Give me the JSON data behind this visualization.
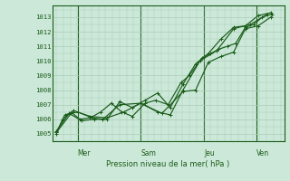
{
  "title": "Pression niveau de la mer( hPa )",
  "ylabel_values": [
    1005,
    1006,
    1007,
    1008,
    1009,
    1010,
    1011,
    1012,
    1013
  ],
  "ylim": [
    1004.5,
    1013.8
  ],
  "xlim": [
    -0.1,
    5.4
  ],
  "background_color": "#cce8d8",
  "grid_color": "#aaccb8",
  "line_color": "#1a5c1a",
  "xtick_labels": [
    "Mer",
    "Sam",
    "Jeu",
    "Ven"
  ],
  "xtick_positions": [
    0.5,
    2.0,
    3.5,
    4.75
  ],
  "vline_positions": [
    0.5,
    2.0,
    3.5,
    4.75
  ],
  "series": [
    {
      "x": [
        0.0,
        0.15,
        0.35,
        0.55,
        0.8,
        1.05,
        1.3,
        1.55,
        1.8,
        2.1,
        2.35,
        2.65,
        2.95,
        3.15,
        3.45,
        3.65,
        3.85,
        4.05,
        4.25,
        4.48,
        4.68,
        4.88,
        5.1
      ],
      "y": [
        1005.0,
        1006.0,
        1006.5,
        1006.0,
        1006.1,
        1006.5,
        1007.1,
        1006.5,
        1006.2,
        1007.1,
        1007.3,
        1007.0,
        1008.5,
        1009.0,
        1010.2,
        1010.5,
        1010.8,
        1011.0,
        1011.2,
        1012.3,
        1012.5,
        1013.0,
        1013.2
      ]
    },
    {
      "x": [
        0.0,
        0.2,
        0.5,
        0.85,
        1.1,
        1.5,
        2.0,
        2.5,
        3.0,
        3.3,
        3.6,
        3.9,
        4.2,
        4.48,
        4.78,
        5.08
      ],
      "y": [
        1005.1,
        1006.3,
        1006.5,
        1006.1,
        1006.0,
        1007.0,
        1007.1,
        1006.4,
        1007.9,
        1008.0,
        1009.9,
        1010.3,
        1010.6,
        1012.2,
        1012.4,
        1013.0
      ]
    },
    {
      "x": [
        0.0,
        0.3,
        0.6,
        0.9,
        1.2,
        1.5,
        1.8,
        2.1,
        2.4,
        2.7,
        3.0,
        3.3,
        3.6,
        3.9,
        4.2,
        4.48,
        4.78,
        5.08
      ],
      "y": [
        1005.2,
        1006.4,
        1005.9,
        1006.0,
        1006.0,
        1007.2,
        1006.8,
        1007.3,
        1007.8,
        1006.8,
        1008.4,
        1009.8,
        1010.5,
        1011.5,
        1012.3,
        1012.4,
        1013.1,
        1013.3
      ]
    },
    {
      "x": [
        0.0,
        0.4,
        0.8,
        1.2,
        1.6,
        2.0,
        2.4,
        2.7,
        3.0,
        3.4,
        3.8,
        4.2,
        4.6,
        5.0
      ],
      "y": [
        1005.1,
        1006.6,
        1006.2,
        1006.1,
        1006.5,
        1007.1,
        1006.5,
        1006.3,
        1008.0,
        1010.0,
        1010.7,
        1012.2,
        1012.5,
        1013.2
      ]
    }
  ]
}
